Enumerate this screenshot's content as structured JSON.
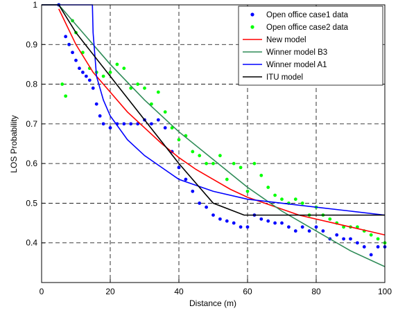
{
  "chart_data": {
    "type": "scatter",
    "title": "",
    "xlabel": "Distance (m)",
    "ylabel": "LOS Probability",
    "xlim": [
      0,
      100
    ],
    "ylim": [
      0.3,
      1.0
    ],
    "xticks": [
      0,
      20,
      40,
      60,
      80,
      100
    ],
    "yticks": [
      0.4,
      0.5,
      0.6,
      0.7,
      0.8,
      0.9,
      1
    ],
    "xtick_labels": [
      "0",
      "20",
      "40",
      "60",
      "80",
      "100"
    ],
    "ytick_labels": [
      "0.4",
      "0.5",
      "0.6",
      "0.7",
      "0.8",
      "0.9",
      "1"
    ],
    "grid": true,
    "legend_position": "top-right",
    "series": [
      {
        "name": "Open office case1 data",
        "kind": "scatter",
        "color": "#0000ff",
        "x": [
          5,
          7,
          8,
          9,
          10,
          11,
          12,
          13,
          14,
          15,
          16,
          17,
          18,
          20,
          22,
          24,
          26,
          28,
          30,
          32,
          34,
          36,
          38,
          40,
          42,
          44,
          46,
          48,
          50,
          52,
          54,
          56,
          58,
          60,
          62,
          64,
          66,
          68,
          70,
          72,
          74,
          76,
          78,
          80,
          82,
          84,
          86,
          88,
          90,
          92,
          94,
          96,
          98,
          100
        ],
        "y": [
          1.0,
          0.92,
          0.9,
          0.88,
          0.86,
          0.84,
          0.83,
          0.82,
          0.81,
          0.79,
          0.75,
          0.72,
          0.7,
          0.69,
          0.7,
          0.7,
          0.7,
          0.7,
          0.71,
          0.7,
          0.71,
          0.69,
          0.63,
          0.59,
          0.56,
          0.53,
          0.5,
          0.49,
          0.47,
          0.46,
          0.455,
          0.45,
          0.44,
          0.44,
          0.47,
          0.46,
          0.455,
          0.45,
          0.45,
          0.44,
          0.43,
          0.44,
          0.43,
          0.44,
          0.43,
          0.41,
          0.42,
          0.41,
          0.41,
          0.4,
          0.39,
          0.37,
          0.39,
          0.39
        ]
      },
      {
        "name": "Open office case2 data",
        "kind": "scatter",
        "color": "#00ff00",
        "x": [
          5,
          6,
          7,
          8,
          9,
          10,
          12,
          14,
          16,
          18,
          20,
          22,
          24,
          26,
          28,
          30,
          32,
          34,
          36,
          38,
          40,
          42,
          44,
          46,
          48,
          50,
          52,
          54,
          56,
          58,
          60,
          62,
          64,
          66,
          68,
          70,
          72,
          74,
          76,
          78,
          80,
          82,
          84,
          86,
          88,
          90,
          92,
          94,
          96,
          98,
          100
        ],
        "y": [
          1.0,
          0.8,
          0.77,
          0.9,
          0.96,
          0.93,
          0.88,
          0.84,
          0.83,
          0.82,
          0.83,
          0.85,
          0.84,
          0.79,
          0.8,
          0.79,
          0.75,
          0.78,
          0.73,
          0.69,
          0.66,
          0.67,
          0.63,
          0.62,
          0.6,
          0.6,
          0.62,
          0.56,
          0.6,
          0.59,
          0.53,
          0.6,
          0.57,
          0.54,
          0.52,
          0.51,
          0.5,
          0.51,
          0.5,
          0.47,
          0.49,
          0.47,
          0.46,
          0.45,
          0.44,
          0.44,
          0.44,
          0.43,
          0.42,
          0.41,
          0.4
        ]
      },
      {
        "name": "New model",
        "kind": "line",
        "color": "#ff0000",
        "x": [
          5,
          10,
          15,
          20,
          25,
          30,
          35,
          40,
          45,
          50,
          55,
          60,
          65,
          70,
          75,
          80,
          85,
          90,
          95,
          100
        ],
        "y": [
          0.99,
          0.9,
          0.83,
          0.78,
          0.73,
          0.69,
          0.65,
          0.615,
          0.585,
          0.56,
          0.535,
          0.515,
          0.5,
          0.485,
          0.47,
          0.46,
          0.45,
          0.44,
          0.43,
          0.42
        ]
      },
      {
        "name": "Winner model B3",
        "kind": "line",
        "color": "#2e8b57",
        "x": [
          0,
          5,
          10,
          20,
          30,
          40,
          50,
          60,
          70,
          80,
          90,
          100
        ],
        "y": [
          1.0,
          1.0,
          0.95,
          0.85,
          0.76,
          0.68,
          0.61,
          0.54,
          0.48,
          0.43,
          0.38,
          0.34
        ]
      },
      {
        "name": "Winner model A1",
        "kind": "line",
        "color": "#0000ff",
        "x": [
          0,
          14.8,
          15,
          16,
          18,
          20,
          25,
          30,
          35,
          40,
          50,
          60,
          70,
          80,
          90,
          100
        ],
        "y": [
          1.0,
          1.0,
          0.93,
          0.82,
          0.76,
          0.72,
          0.66,
          0.62,
          0.59,
          0.56,
          0.53,
          0.51,
          0.5,
          0.49,
          0.48,
          0.47
        ]
      },
      {
        "name": "ITU model",
        "kind": "line",
        "color": "#000000",
        "x": [
          0,
          5,
          10,
          20,
          30,
          40,
          50,
          59,
          60,
          70,
          80,
          90,
          100
        ],
        "y": [
          1.0,
          1.0,
          0.93,
          0.82,
          0.71,
          0.6,
          0.5,
          0.47,
          0.47,
          0.47,
          0.47,
          0.47,
          0.47
        ]
      }
    ]
  }
}
